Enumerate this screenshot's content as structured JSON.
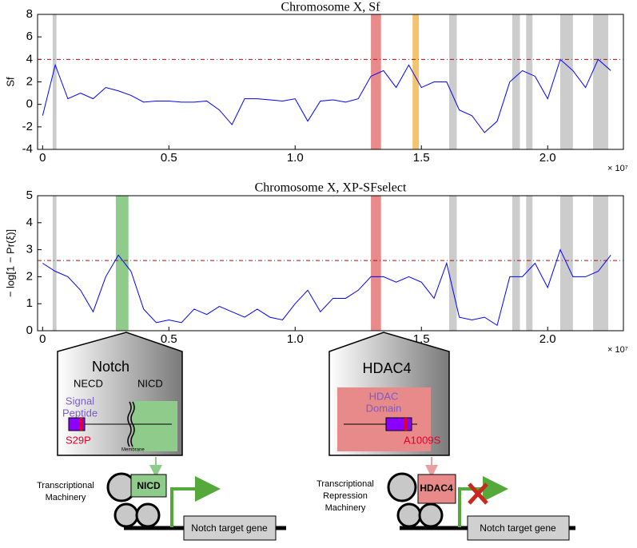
{
  "chart_data": [
    {
      "type": "line",
      "title": "Chromosome X, Sf",
      "y_label": "Sf",
      "x_multiplier_label": "× 10⁷",
      "xlim": [
        -0.02,
        2.3
      ],
      "xticks": [
        0,
        0.5,
        {
          "value": 1,
          "label": "1.0"
        },
        1.5,
        {
          "value": 2,
          "label": "2.0"
        }
      ],
      "ylim": [
        -4,
        8
      ],
      "yticks": [
        -4,
        -2,
        0,
        2,
        4,
        6,
        8
      ],
      "threshold": 4,
      "threshold_color": "#cc0000",
      "highlights": [
        {
          "range": [
            0.04,
            0.055
          ],
          "color": "#cccccc"
        },
        {
          "range": [
            1.3,
            1.34
          ],
          "color": "#e88a8a"
        },
        {
          "range": [
            1.465,
            1.49
          ],
          "color": "#f3c46e"
        },
        {
          "range": [
            1.61,
            1.64
          ],
          "color": "#cccccc"
        },
        {
          "range": [
            1.86,
            1.89
          ],
          "color": "#cccccc"
        },
        {
          "range": [
            1.915,
            1.94
          ],
          "color": "#cccccc"
        },
        {
          "range": [
            2.05,
            2.1
          ],
          "color": "#cccccc"
        },
        {
          "range": [
            2.18,
            2.24
          ],
          "color": "#cccccc"
        }
      ],
      "color": "#0000ff",
      "x": [
        0,
        0.05,
        0.1,
        0.15,
        0.2,
        0.25,
        0.3,
        0.35,
        0.4,
        0.45,
        0.5,
        0.55,
        0.6,
        0.65,
        0.7,
        0.75,
        0.8,
        0.85,
        0.9,
        0.95,
        1.0,
        1.05,
        1.1,
        1.15,
        1.2,
        1.25,
        1.3,
        1.35,
        1.4,
        1.45,
        1.5,
        1.55,
        1.6,
        1.65,
        1.7,
        1.75,
        1.8,
        1.85,
        1.9,
        1.95,
        2.0,
        2.05,
        2.1,
        2.15,
        2.2,
        2.25
      ],
      "values": [
        -1,
        3.5,
        0.5,
        1,
        0.5,
        1.5,
        1.2,
        0.8,
        0.2,
        0.3,
        0.3,
        0.2,
        0.2,
        0.3,
        -0.5,
        -1.8,
        0.5,
        0.5,
        0.4,
        0.3,
        0.5,
        -1.5,
        0.3,
        0.4,
        0.2,
        0.5,
        2.5,
        3,
        1.5,
        3.5,
        1.5,
        2,
        2,
        -0.5,
        -1,
        -2.5,
        -1.5,
        2,
        3,
        2.5,
        0.5,
        4,
        3,
        1.5,
        4,
        3
      ]
    },
    {
      "type": "line",
      "title": "Chromosome X, XP-SFselect",
      "y_label": "− log[1 − Pr(ξ)]",
      "x_multiplier_label": "× 10⁷",
      "xlim": [
        -0.02,
        2.3
      ],
      "xticks": [
        0,
        0.5,
        {
          "value": 1,
          "label": "1.0"
        },
        1.5,
        {
          "value": 2,
          "label": "2.0"
        }
      ],
      "ylim": [
        0,
        5
      ],
      "yticks": [
        0,
        1,
        2,
        3,
        4,
        5
      ],
      "threshold": 2.6,
      "threshold_color": "#cc0000",
      "highlights": [
        {
          "range": [
            0.04,
            0.055
          ],
          "color": "#cccccc"
        },
        {
          "range": [
            0.29,
            0.34
          ],
          "color": "#8fcb8a"
        },
        {
          "range": [
            1.3,
            1.34
          ],
          "color": "#e88a8a"
        },
        {
          "range": [
            1.61,
            1.64
          ],
          "color": "#cccccc"
        },
        {
          "range": [
            1.86,
            1.89
          ],
          "color": "#cccccc"
        },
        {
          "range": [
            1.915,
            1.94
          ],
          "color": "#cccccc"
        },
        {
          "range": [
            2.05,
            2.1
          ],
          "color": "#cccccc"
        },
        {
          "range": [
            2.18,
            2.24
          ],
          "color": "#cccccc"
        }
      ],
      "color": "#0000ff",
      "x": [
        0,
        0.05,
        0.1,
        0.15,
        0.2,
        0.25,
        0.3,
        0.35,
        0.4,
        0.45,
        0.5,
        0.55,
        0.6,
        0.65,
        0.7,
        0.75,
        0.8,
        0.85,
        0.9,
        0.95,
        1.0,
        1.05,
        1.1,
        1.15,
        1.2,
        1.25,
        1.3,
        1.35,
        1.4,
        1.45,
        1.5,
        1.55,
        1.6,
        1.65,
        1.7,
        1.75,
        1.8,
        1.85,
        1.9,
        1.95,
        2.0,
        2.05,
        2.1,
        2.15,
        2.2,
        2.25
      ],
      "values": [
        2.5,
        2.2,
        2,
        1.5,
        0.7,
        2,
        2.8,
        2.2,
        0.8,
        0.3,
        0.4,
        0.3,
        0.8,
        0.6,
        0.9,
        0.7,
        0.5,
        0.8,
        0.5,
        0.4,
        1,
        1.5,
        0.7,
        1.2,
        1.2,
        1.5,
        2,
        2,
        1.8,
        2,
        1.8,
        1.2,
        2.5,
        0.5,
        0.4,
        0.5,
        0.2,
        2,
        2,
        2.5,
        1.6,
        3,
        2,
        2,
        2.2,
        2.8
      ]
    }
  ],
  "diagram": {
    "notch": {
      "title": "Notch",
      "necd": "NECD",
      "nicd": "NICD",
      "signal": [
        "Signal",
        "Peptide"
      ],
      "mutation": "S29P",
      "membrane": "Membrane",
      "machinery": [
        "Transcriptional",
        "Machinery"
      ],
      "factor": "NICD",
      "gene": "Notch target gene"
    },
    "hdac4": {
      "title": "HDAC4",
      "domain": [
        "HDAC",
        "Domain"
      ],
      "mutation": "A1009S",
      "machinery": [
        "Transcriptional",
        "Repression",
        "Machinery"
      ],
      "factor": "HDAC4",
      "gene": "Notch target gene"
    }
  }
}
